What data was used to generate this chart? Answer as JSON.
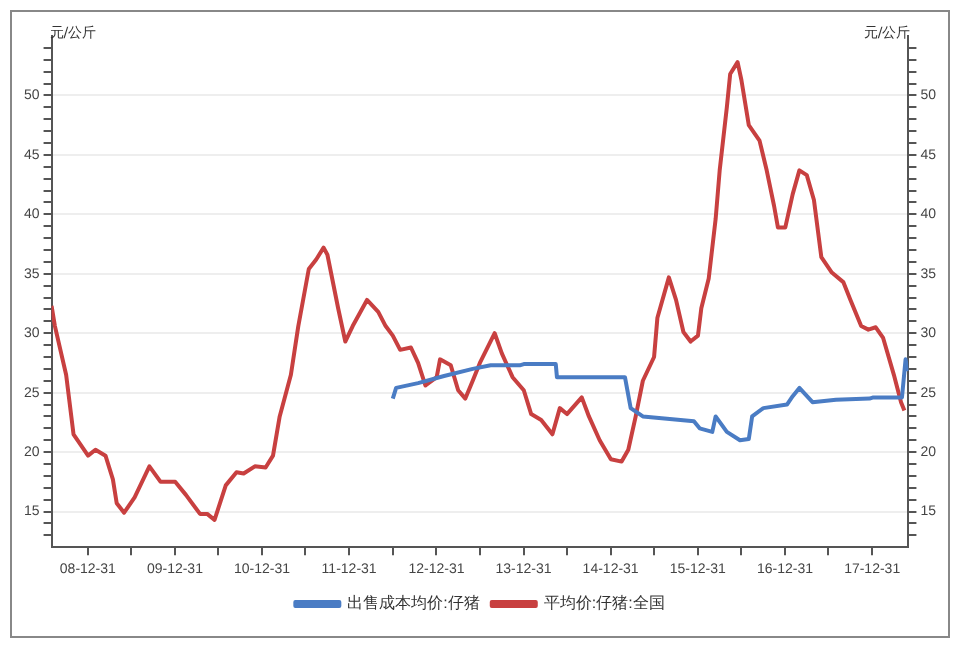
{
  "chart_data": {
    "type": "line",
    "ylabel": "元/公斤",
    "y2label": "元/公斤",
    "legend": "bottom",
    "grid": "y",
    "marker": "none",
    "line_style": "solid",
    "xlim": [
      "2008-08-01",
      "2018-06-01"
    ],
    "xticks": [
      {
        "value": "2008-12-31",
        "label": "08-12-31"
      },
      {
        "value": "2009-07-01",
        "label": null
      },
      {
        "value": "2009-12-31",
        "label": "09-12-31"
      },
      {
        "value": "2010-07-01",
        "label": null
      },
      {
        "value": "2010-12-31",
        "label": "10-12-31"
      },
      {
        "value": "2011-07-01",
        "label": null
      },
      {
        "value": "2011-12-31",
        "label": "11-12-31"
      },
      {
        "value": "2012-07-01",
        "label": null
      },
      {
        "value": "2012-12-31",
        "label": "12-12-31"
      },
      {
        "value": "2013-07-01",
        "label": null
      },
      {
        "value": "2013-12-31",
        "label": "13-12-31"
      },
      {
        "value": "2014-07-01",
        "label": null
      },
      {
        "value": "2014-12-31",
        "label": "14-12-31"
      },
      {
        "value": "2015-07-01",
        "label": null
      },
      {
        "value": "2015-12-31",
        "label": "15-12-31"
      },
      {
        "value": "2016-07-01",
        "label": null
      },
      {
        "value": "2016-12-31",
        "label": "16-12-31"
      },
      {
        "value": "2017-07-01",
        "label": null
      },
      {
        "value": "2017-12-31",
        "label": "17-12-31"
      }
    ],
    "ylim": [
      12,
      55
    ],
    "yticks": [
      {
        "value": 13,
        "label": null
      },
      {
        "value": 14,
        "label": null
      },
      15,
      {
        "value": 16,
        "label": null
      },
      {
        "value": 17,
        "label": null
      },
      {
        "value": 18,
        "label": null
      },
      {
        "value": 19,
        "label": null
      },
      20,
      {
        "value": 21,
        "label": null
      },
      {
        "value": 22,
        "label": null
      },
      {
        "value": 23,
        "label": null
      },
      {
        "value": 24,
        "label": null
      },
      25,
      {
        "value": 26,
        "label": null
      },
      {
        "value": 27,
        "label": null
      },
      {
        "value": 28,
        "label": null
      },
      {
        "value": 29,
        "label": null
      },
      30,
      {
        "value": 31,
        "label": null
      },
      {
        "value": 32,
        "label": null
      },
      {
        "value": 33,
        "label": null
      },
      {
        "value": 34,
        "label": null
      },
      35,
      {
        "value": 36,
        "label": null
      },
      {
        "value": 37,
        "label": null
      },
      {
        "value": 38,
        "label": null
      },
      {
        "value": 39,
        "label": null
      },
      40,
      {
        "value": 41,
        "label": null
      },
      {
        "value": 42,
        "label": null
      },
      {
        "value": 43,
        "label": null
      },
      {
        "value": 44,
        "label": null
      },
      45,
      {
        "value": 46,
        "label": null
      },
      {
        "value": 47,
        "label": null
      },
      {
        "value": 48,
        "label": null
      },
      {
        "value": 49,
        "label": null
      },
      50,
      {
        "value": 51,
        "label": null
      },
      {
        "value": 52,
        "label": null
      },
      {
        "value": 53,
        "label": null
      },
      {
        "value": 54,
        "label": null
      }
    ],
    "y2lim": [
      12,
      55
    ],
    "y2ticks": [
      {
        "value": 13,
        "label": null
      },
      {
        "value": 14,
        "label": null
      },
      15,
      {
        "value": 16,
        "label": null
      },
      {
        "value": 17,
        "label": null
      },
      {
        "value": 18,
        "label": null
      },
      {
        "value": 19,
        "label": null
      },
      20,
      {
        "value": 21,
        "label": null
      },
      {
        "value": 22,
        "label": null
      },
      {
        "value": 23,
        "label": null
      },
      {
        "value": 24,
        "label": null
      },
      25,
      {
        "value": 26,
        "label": null
      },
      {
        "value": 27,
        "label": null
      },
      {
        "value": 28,
        "label": null
      },
      {
        "value": 29,
        "label": null
      },
      30,
      {
        "value": 31,
        "label": null
      },
      {
        "value": 32,
        "label": null
      },
      {
        "value": 33,
        "label": null
      },
      {
        "value": 34,
        "label": null
      },
      35,
      {
        "value": 36,
        "label": null
      },
      {
        "value": 37,
        "label": null
      },
      {
        "value": 38,
        "label": null
      },
      {
        "value": 39,
        "label": null
      },
      40,
      {
        "value": 41,
        "label": null
      },
      {
        "value": 42,
        "label": null
      },
      {
        "value": 43,
        "label": null
      },
      {
        "value": 44,
        "label": null
      },
      45,
      {
        "value": 46,
        "label": null
      },
      {
        "value": 47,
        "label": null
      },
      {
        "value": 48,
        "label": null
      },
      {
        "value": 49,
        "label": null
      },
      50,
      {
        "value": 51,
        "label": null
      },
      {
        "value": 52,
        "label": null
      },
      {
        "value": 53,
        "label": null
      },
      {
        "value": 54,
        "label": null
      }
    ],
    "series": [
      {
        "name": "出售成本均价:仔猪",
        "color": "#4a7cc4",
        "x": [
          "2012-07-01",
          "2012-07-15",
          "2012-10-15",
          "2013-02-01",
          "2013-06-01",
          "2013-08-15",
          "2013-12-15",
          "2014-01-01",
          "2014-05-15",
          "2014-05-20",
          "2015-03-01",
          "2015-03-25",
          "2015-05-15",
          "2015-12-15",
          "2016-01-08",
          "2016-03-01",
          "2016-03-15",
          "2016-05-01",
          "2016-06-25",
          "2016-08-01",
          "2016-08-15",
          "2016-10-01",
          "2017-01-08",
          "2017-02-01",
          "2017-03-01",
          "2017-04-25",
          "2017-08-01",
          "2017-12-20",
          "2018-01-05",
          "2018-05-05",
          "2018-05-20",
          "2018-05-28"
        ],
        "values": [
          24.5,
          25.4,
          25.8,
          26.4,
          27.0,
          27.3,
          27.3,
          27.4,
          27.4,
          26.3,
          26.3,
          23.7,
          23.0,
          22.6,
          22.0,
          21.7,
          23.0,
          21.7,
          21.0,
          21.1,
          23.0,
          23.7,
          24.0,
          24.7,
          25.4,
          24.2,
          24.4,
          24.5,
          24.6,
          24.6,
          27.8,
          26.8
        ]
      },
      {
        "name": "平均价:仔猪:全国",
        "color": "#c84040",
        "x": [
          "2008-08-01",
          "2008-08-15",
          "2008-10-01",
          "2008-11-01",
          "2009-01-01",
          "2009-02-01",
          "2009-03-15",
          "2009-04-15",
          "2009-05-01",
          "2009-06-01",
          "2009-07-15",
          "2009-09-01",
          "2009-09-15",
          "2009-11-01",
          "2010-01-01",
          "2010-02-15",
          "2010-04-15",
          "2010-05-15",
          "2010-06-15",
          "2010-08-01",
          "2010-09-15",
          "2010-10-15",
          "2010-12-01",
          "2011-01-15",
          "2011-02-15",
          "2011-03-15",
          "2011-05-01",
          "2011-06-01",
          "2011-07-15",
          "2011-08-15",
          "2011-09-15",
          "2011-10-01",
          "2011-11-15",
          "2011-12-15",
          "2012-01-15",
          "2012-03-15",
          "2012-05-01",
          "2012-06-01",
          "2012-07-01",
          "2012-08-01",
          "2012-09-15",
          "2012-10-15",
          "2012-11-15",
          "2013-01-01",
          "2013-01-15",
          "2013-03-01",
          "2013-04-01",
          "2013-05-01",
          "2013-06-01",
          "2013-07-01",
          "2013-09-01",
          "2013-10-01",
          "2013-11-15",
          "2014-01-01",
          "2014-02-01",
          "2014-03-15",
          "2014-05-01",
          "2014-06-01",
          "2014-07-01",
          "2014-09-01",
          "2014-10-01",
          "2014-11-15",
          "2015-01-01",
          "2015-02-15",
          "2015-03-15",
          "2015-04-15",
          "2015-05-15",
          "2015-07-01",
          "2015-07-15",
          "2015-09-01",
          "2015-10-01",
          "2015-11-01",
          "2015-12-01",
          "2016-01-01",
          "2016-01-15",
          "2016-02-15",
          "2016-03-15",
          "2016-04-01",
          "2016-05-01",
          "2016-05-15",
          "2016-06-15",
          "2016-07-01",
          "2016-08-01",
          "2016-09-15",
          "2016-10-15",
          "2016-11-15",
          "2016-12-01",
          "2017-01-01",
          "2017-02-01",
          "2017-03-01",
          "2017-04-01",
          "2017-05-01",
          "2017-06-01",
          "2017-07-15",
          "2017-09-01",
          "2017-10-01",
          "2017-11-15",
          "2017-12-15",
          "2018-01-15",
          "2018-02-15",
          "2018-04-01",
          "2018-05-01",
          "2018-05-15"
        ],
        "values": [
          32.3,
          30.6,
          26.5,
          21.5,
          19.7,
          20.2,
          19.7,
          17.7,
          15.7,
          14.9,
          16.2,
          18.2,
          18.8,
          17.5,
          17.5,
          16.4,
          14.8,
          14.8,
          14.3,
          17.2,
          18.3,
          18.2,
          18.8,
          18.7,
          19.7,
          23.0,
          26.5,
          30.6,
          35.4,
          36.2,
          37.2,
          36.6,
          32.1,
          29.3,
          30.6,
          32.8,
          31.8,
          30.6,
          29.8,
          28.6,
          28.8,
          27.5,
          25.6,
          26.3,
          27.8,
          27.3,
          25.2,
          24.5,
          26.0,
          27.5,
          30.0,
          28.3,
          26.3,
          25.2,
          23.2,
          22.7,
          21.5,
          23.7,
          23.2,
          24.6,
          23.0,
          21.0,
          19.4,
          19.2,
          20.2,
          23.0,
          26.0,
          28.0,
          31.3,
          34.7,
          32.8,
          30.1,
          29.3,
          29.8,
          32.1,
          34.6,
          39.6,
          43.7,
          49.0,
          51.8,
          52.8,
          51.3,
          47.5,
          46.2,
          43.7,
          40.7,
          38.9,
          38.9,
          41.7,
          43.7,
          43.3,
          41.2,
          36.4,
          35.1,
          34.3,
          32.8,
          30.6,
          30.3,
          30.5,
          29.6,
          26.5,
          24.2,
          23.5
        ]
      }
    ]
  }
}
